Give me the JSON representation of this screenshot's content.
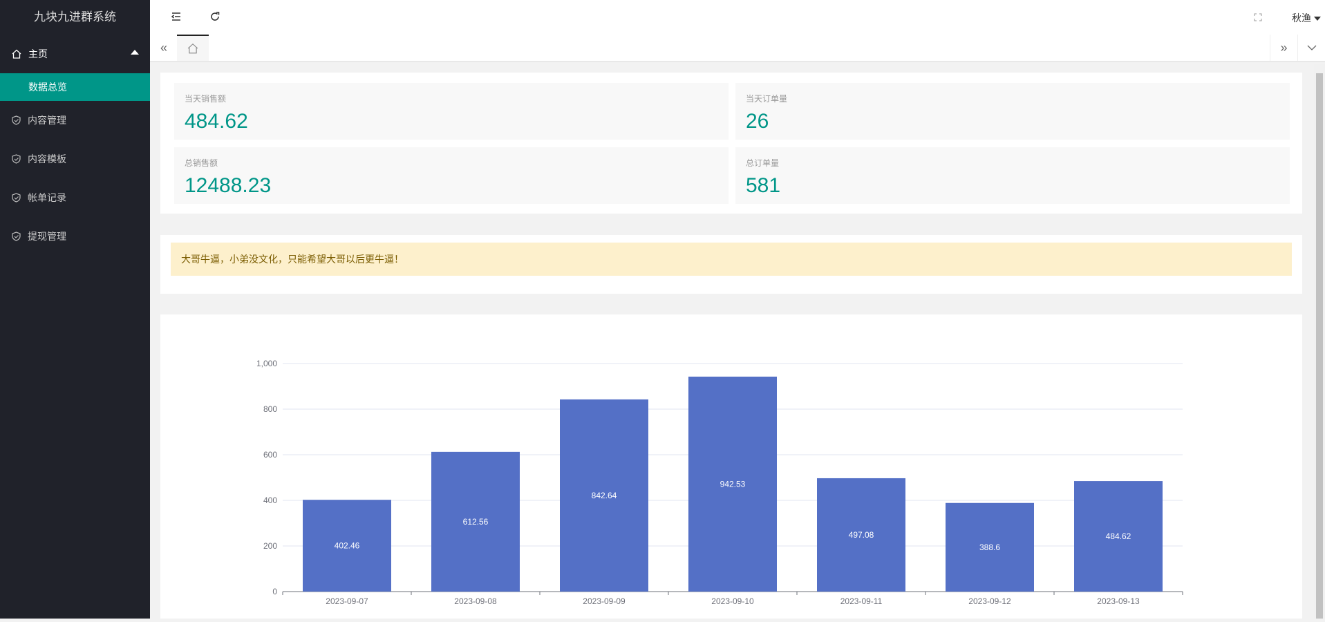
{
  "app": {
    "title": "九块九进群系统"
  },
  "sidebar": {
    "group": {
      "label": "主页",
      "icon": "home-icon",
      "sub": "数据总览"
    },
    "items": [
      {
        "label": "内容管理",
        "icon": "shield-check-icon"
      },
      {
        "label": "内容模板",
        "icon": "shield-check-icon"
      },
      {
        "label": "帐单记录",
        "icon": "shield-check-icon"
      },
      {
        "label": "提现管理",
        "icon": "shield-check-icon"
      }
    ]
  },
  "header": {
    "user": "秋渔"
  },
  "stats": [
    {
      "label": "当天销售额",
      "value": "484.62"
    },
    {
      "label": "当天订单量",
      "value": "26"
    },
    {
      "label": "总销售额",
      "value": "12488.23"
    },
    {
      "label": "总订单量",
      "value": "581"
    }
  ],
  "notice": "大哥牛逼，小弟没文化，只能希望大哥以后更牛逼！",
  "colors": {
    "accent": "#009688",
    "bar": "#5470c6",
    "sidebar": "#20222a"
  },
  "chart_data": {
    "type": "bar",
    "categories": [
      "2023-09-07",
      "2023-09-08",
      "2023-09-09",
      "2023-09-10",
      "2023-09-11",
      "2023-09-12",
      "2023-09-13"
    ],
    "values": [
      402.46,
      612.56,
      842.64,
      942.53,
      497.08,
      388.6,
      484.62
    ],
    "value_labels": [
      "402.46",
      "612.56",
      "842.64",
      "942.53",
      "497.08",
      "388.6",
      "484.62"
    ],
    "ylim": [
      0,
      1000
    ],
    "yticks": [
      "0",
      "200",
      "400",
      "600",
      "800",
      "1,000"
    ],
    "grid": true
  }
}
